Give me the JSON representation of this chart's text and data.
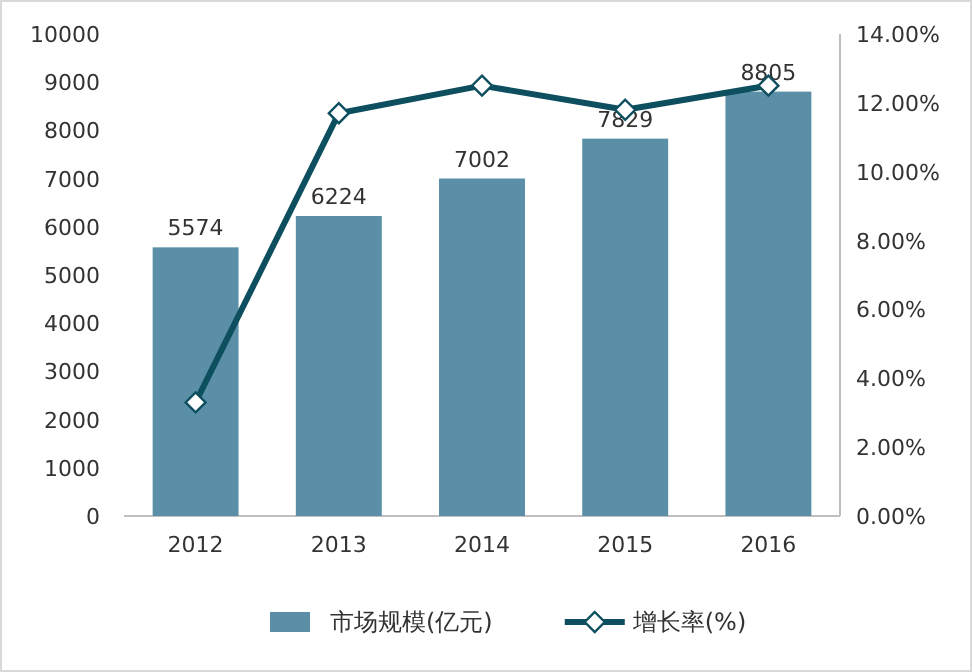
{
  "chart_data": {
    "type": "bar",
    "categories": [
      "2012",
      "2013",
      "2014",
      "2015",
      "2016"
    ],
    "series": [
      {
        "name": "市场规模(亿元)",
        "color": "#5b8fa8",
        "values": [
          5574,
          6224,
          7002,
          7829,
          8805
        ],
        "value_labels": [
          "5574",
          "6224",
          "7002",
          "7829",
          "8805"
        ]
      },
      {
        "name": "增长率(%)",
        "type": "line",
        "axis": "y2",
        "color": "#0d4e5f",
        "marker": "diamond",
        "values": [
          3.3,
          11.7,
          12.5,
          11.8,
          12.5
        ]
      }
    ],
    "ylim": [
      0,
      10000
    ],
    "yticks": [
      0,
      1000,
      2000,
      3000,
      4000,
      5000,
      6000,
      7000,
      8000,
      9000,
      10000
    ],
    "y2lim": [
      0,
      14
    ],
    "y2ticks": [
      {
        "value": 0,
        "label": "0.00%"
      },
      {
        "value": 2,
        "label": "2.00%"
      },
      {
        "value": 4,
        "label": "4.00%"
      },
      {
        "value": 6,
        "label": "6.00%"
      },
      {
        "value": 8,
        "label": "8.00%"
      },
      {
        "value": 10,
        "label": "10.00%"
      },
      {
        "value": 12,
        "label": "12.00%"
      },
      {
        "value": 14,
        "label": "14.00%"
      }
    ],
    "legend": "bottom"
  }
}
